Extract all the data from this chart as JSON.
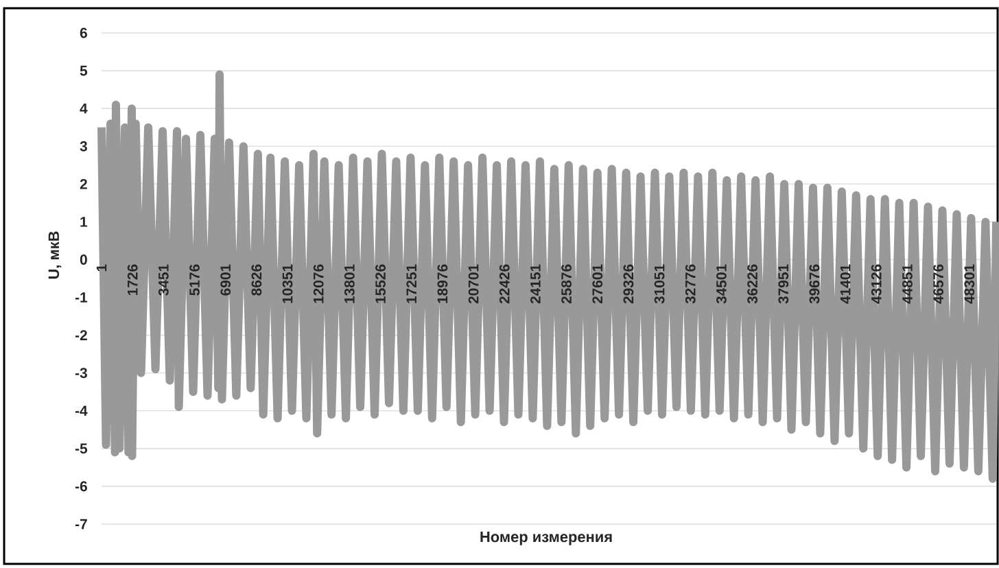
{
  "chart_data": {
    "type": "line",
    "xlabel": "Номер измерения",
    "ylabel": "U, мкВ",
    "color": "#999999",
    "marker": "none",
    "grid": "y",
    "xlim": [
      1,
      49800
    ],
    "ylim": [
      -7,
      6
    ],
    "xticks": [
      1,
      1726,
      3451,
      5176,
      6901,
      8626,
      10351,
      12076,
      13801,
      15526,
      17251,
      18976,
      20701,
      22426,
      24151,
      25876,
      27601,
      29326,
      31051,
      32776,
      34501,
      36226,
      37951,
      39676,
      41401,
      43126,
      44851,
      46576,
      48301
    ],
    "yticks": [
      -7,
      -6,
      -5,
      -4,
      -3,
      -2,
      -1,
      0,
      1,
      2,
      3,
      4,
      5,
      6
    ],
    "x": [
      1,
      250,
      500,
      750,
      800,
      1000,
      1300,
      1500,
      1680,
      1700,
      1900,
      2200,
      2600,
      3000,
      3400,
      3800,
      4200,
      4300,
      4700,
      5100,
      5500,
      5900,
      6300,
      6500,
      6570,
      6700,
      7100,
      7500,
      7900,
      8300,
      8700,
      9000,
      9400,
      9800,
      10200,
      10600,
      11000,
      11400,
      11800,
      12000,
      12400,
      12800,
      13200,
      13600,
      14000,
      14400,
      14800,
      15200,
      15600,
      16000,
      16400,
      16800,
      17200,
      17600,
      18000,
      18400,
      18800,
      19200,
      19600,
      20000,
      20400,
      20800,
      21200,
      21600,
      22000,
      22400,
      22800,
      23200,
      23600,
      24000,
      24400,
      24800,
      25200,
      25600,
      26000,
      26400,
      26800,
      27200,
      27600,
      28000,
      28400,
      28800,
      29200,
      29600,
      30000,
      30400,
      30800,
      31200,
      31600,
      32000,
      32400,
      32800,
      33200,
      33600,
      34000,
      34400,
      34800,
      35200,
      35600,
      36000,
      36400,
      36800,
      37200,
      37600,
      38000,
      38400,
      38800,
      39200,
      39600,
      40000,
      40400,
      40800,
      41200,
      41600,
      42000,
      42400,
      42800,
      43200,
      43600,
      44000,
      44400,
      44800,
      45200,
      45600,
      46000,
      46400,
      46800,
      47200,
      47600,
      48000,
      48400,
      48800,
      49200,
      49600,
      49800
    ],
    "values": [
      3.5,
      -4.9,
      3.6,
      -5.1,
      4.1,
      -5.0,
      3.5,
      -5.1,
      4.0,
      -5.2,
      3.6,
      -3.0,
      3.5,
      -2.9,
      3.4,
      -3.2,
      3.4,
      -3.9,
      3.2,
      -3.5,
      3.3,
      -3.6,
      3.2,
      -3.4,
      4.9,
      -3.7,
      3.1,
      -3.6,
      3.0,
      -3.4,
      2.8,
      -4.1,
      2.7,
      -4.2,
      2.6,
      -4.0,
      2.5,
      -4.2,
      2.8,
      -4.6,
      2.6,
      -4.1,
      2.5,
      -4.2,
      2.7,
      -3.9,
      2.6,
      -4.1,
      2.8,
      -3.8,
      2.6,
      -4.0,
      2.7,
      -4.0,
      2.5,
      -4.2,
      2.7,
      -3.9,
      2.6,
      -4.3,
      2.5,
      -4.1,
      2.7,
      -4.0,
      2.5,
      -4.3,
      2.6,
      -4.1,
      2.5,
      -4.2,
      2.6,
      -4.4,
      2.4,
      -4.3,
      2.5,
      -4.6,
      2.4,
      -4.4,
      2.3,
      -4.2,
      2.4,
      -4.1,
      2.3,
      -4.3,
      2.2,
      -4.0,
      2.3,
      -4.1,
      2.2,
      -3.9,
      2.3,
      -4.0,
      2.2,
      -4.1,
      2.3,
      -4.0,
      2.1,
      -4.2,
      2.2,
      -4.1,
      2.1,
      -4.3,
      2.2,
      -4.2,
      2.0,
      -4.5,
      2.0,
      -4.3,
      1.9,
      -4.6,
      1.9,
      -4.8,
      1.8,
      -4.6,
      1.7,
      -5.0,
      1.6,
      -5.2,
      1.6,
      -5.3,
      1.5,
      -5.5,
      1.5,
      -5.2,
      1.4,
      -5.6,
      1.3,
      -5.4,
      1.2,
      -5.5,
      1.1,
      -5.6,
      1.0,
      -5.8,
      1.0
    ]
  }
}
